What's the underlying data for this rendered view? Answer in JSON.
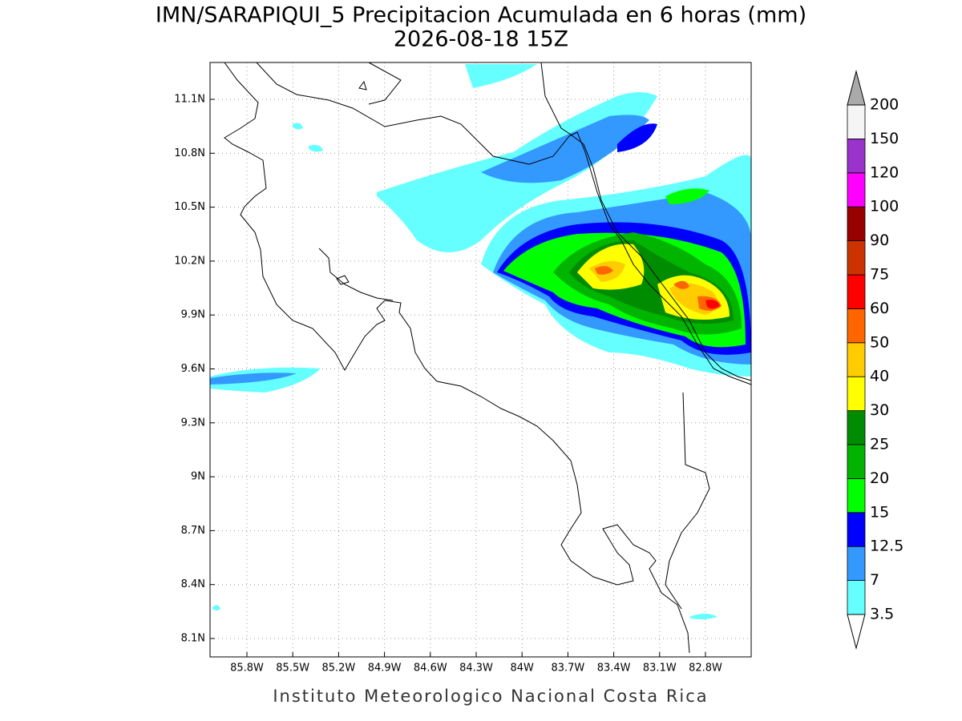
{
  "header": {
    "title": "IMN/SARAPIQUI_5 Precipitacion Acumulada en 6 horas (mm)",
    "subtitle": "2026-08-18 15Z"
  },
  "map": {
    "x_ticks": [
      "85.8W",
      "85.5W",
      "85.2W",
      "84.9W",
      "84.6W",
      "84.3W",
      "84W",
      "83.7W",
      "83.4W",
      "83.1W",
      "82.8W"
    ],
    "y_ticks": [
      "11.1N",
      "10.8N",
      "10.5N",
      "10.2N",
      "9.9N",
      "9.6N",
      "9.3N",
      "9N",
      "8.7N",
      "8.4N",
      "8.1N"
    ]
  },
  "colorbar": {
    "levels": [
      3.5,
      7,
      12.5,
      15,
      20,
      25,
      30,
      40,
      50,
      60,
      75,
      90,
      100,
      120,
      150,
      200
    ],
    "colors": [
      "#66ffff",
      "#3399ff",
      "#0000ff",
      "#00ff00",
      "#00b400",
      "#008c00",
      "#ffff00",
      "#ffcc00",
      "#ff6600",
      "#ff0000",
      "#cc3300",
      "#990000",
      "#ff00ff",
      "#9933cc",
      "#f5f5f5"
    ],
    "under_color": "#ffffff",
    "over_color": "#aaaaaa"
  },
  "footer": "Instituto Meteorologico Nacional Costa Rica"
}
